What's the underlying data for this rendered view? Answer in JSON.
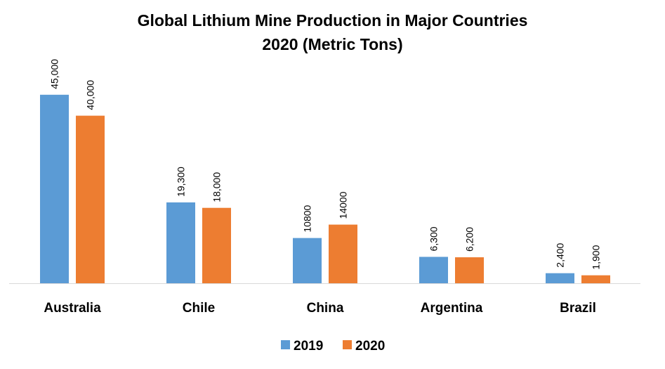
{
  "chart_data": {
    "type": "bar",
    "title_line1": "Global Lithium Mine Production in Major Countries",
    "title_line2": "2020 (Metric Tons)",
    "categories": [
      "Australia",
      "Chile",
      "China",
      "Argentina",
      "Brazil"
    ],
    "series": [
      {
        "name": "2019",
        "color": "#5B9BD5",
        "values": [
          45000,
          19300,
          10800,
          6300,
          2400
        ],
        "labels": [
          "45,000",
          "19,300",
          "10800",
          "6,300",
          "2,400"
        ]
      },
      {
        "name": "2020",
        "color": "#ED7D31",
        "values": [
          40000,
          18000,
          14000,
          6200,
          1900
        ],
        "labels": [
          "40,000",
          "18,000",
          "14000",
          "6,200",
          "1,900"
        ]
      }
    ],
    "xlabel": "",
    "ylabel": "",
    "ylim": [
      0,
      50000
    ],
    "grid": false,
    "legend": "bottom"
  }
}
